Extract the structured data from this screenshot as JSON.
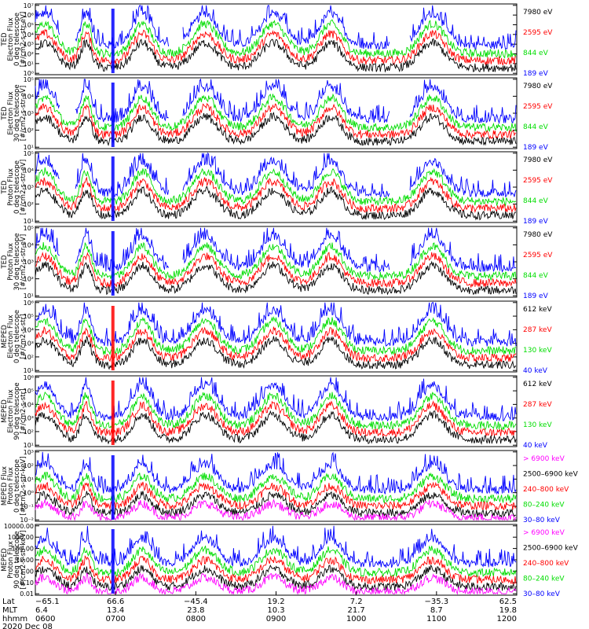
{
  "chart_data": {
    "type": "line",
    "panels": [
      {
        "id": "ted-e-0",
        "ylabel": [
          "TED",
          "Electron Flux",
          "0 deg telescope",
          "[#/cm2-s-str-eV]"
        ],
        "yticks": [
          "10⁰",
          "10¹",
          "10²",
          "10³",
          "10⁴",
          "10⁵",
          "10⁶",
          "10⁷"
        ],
        "ylim": [
          0,
          7
        ],
        "legend": [
          {
            "label": "7980 eV",
            "color": "#000000"
          },
          {
            "label": "2595 eV",
            "color": "#ff0000"
          },
          {
            "label": "844 eV",
            "color": "#00dd00"
          },
          {
            "label": "189 eV",
            "color": "#0000ff"
          }
        ]
      },
      {
        "id": "ted-e-30",
        "ylabel": [
          "TED",
          "Electron Flux",
          "30 deg telescope",
          "[#/cm2-s-str-eV]"
        ],
        "yticks": [
          "10¹",
          "10²",
          "10³",
          "10⁴",
          "10⁵"
        ],
        "ylim": [
          0.5,
          5.6
        ],
        "legend": [
          {
            "label": "7980 eV",
            "color": "#000000"
          },
          {
            "label": "2595 eV",
            "color": "#ff0000"
          },
          {
            "label": "844 eV",
            "color": "#00dd00"
          },
          {
            "label": "189 eV",
            "color": "#0000ff"
          }
        ]
      },
      {
        "id": "ted-p-0",
        "ylabel": [
          "TED",
          "Proton Flux",
          "0 deg telescope",
          "[#/cm2-s-str-eV]"
        ],
        "yticks": [
          "10¹",
          "10²",
          "10³",
          "10⁴",
          "10⁵"
        ],
        "ylim": [
          0.5,
          5.6
        ],
        "legend": [
          {
            "label": "7980 eV",
            "color": "#000000"
          },
          {
            "label": "2595 eV",
            "color": "#ff0000"
          },
          {
            "label": "844 eV",
            "color": "#00dd00"
          },
          {
            "label": "189 eV",
            "color": "#0000ff"
          }
        ]
      },
      {
        "id": "ted-p-30",
        "ylabel": [
          "TED",
          "Proton Flux",
          "30 deg telescope",
          "[#/cm2-s-str-eV]"
        ],
        "yticks": [
          "10¹",
          "10²",
          "10³",
          "10⁴",
          "10⁵"
        ],
        "ylim": [
          0.5,
          5.6
        ],
        "legend": [
          {
            "label": "7980 eV",
            "color": "#000000"
          },
          {
            "label": "2595 eV",
            "color": "#ff0000"
          },
          {
            "label": "844 eV",
            "color": "#00dd00"
          },
          {
            "label": "189 eV",
            "color": "#0000ff"
          }
        ]
      },
      {
        "id": "meped-e-0",
        "ylabel": [
          "MEPED",
          "Electron Flux",
          "0 deg telescope",
          "[#/cm2-s-str]"
        ],
        "yticks": [
          "10¹",
          "10²",
          "10³",
          "10⁴",
          "10⁵",
          "10⁶"
        ],
        "ylim": [
          1,
          6.4
        ],
        "legend": [
          {
            "label": "612 keV",
            "color": "#000000"
          },
          {
            "label": "287 keV",
            "color": "#ff0000"
          },
          {
            "label": "130 keV",
            "color": "#00dd00"
          },
          {
            "label": "40 keV",
            "color": "#0000ff"
          }
        ]
      },
      {
        "id": "meped-e-90",
        "ylabel": [
          "MEPED",
          "Electron Flux",
          "90 deg telescope",
          "[#/cm2-s-str]"
        ],
        "yticks": [
          "10¹",
          "10²",
          "10³",
          "10⁴",
          "10⁵",
          "10⁶"
        ],
        "ylim": [
          1,
          6.4
        ],
        "legend": [
          {
            "label": "612 keV",
            "color": "#000000"
          },
          {
            "label": "287 keV",
            "color": "#ff0000"
          },
          {
            "label": "130 keV",
            "color": "#00dd00"
          },
          {
            "label": "40 keV",
            "color": "#0000ff"
          }
        ]
      },
      {
        "id": "meped-p-0",
        "ylabel": [
          "MEPED Flux",
          "Proton Flux",
          "0 deg telescope",
          "[#/cm2-s-str-keV]"
        ],
        "yticks": [
          "10⁻²",
          "10⁻¹",
          "10⁰",
          "10¹",
          "10²",
          "10³"
        ],
        "ylim": [
          -2.3,
          3.6
        ],
        "legend": [
          {
            "label": "> 6900 keV",
            "color": "#ff00ff"
          },
          {
            "label": "2500–6900 keV",
            "color": "#000000"
          },
          {
            "label": "240–800 keV",
            "color": "#ff0000"
          },
          {
            "label": "80–240 keV",
            "color": "#00dd00"
          },
          {
            "label": "30–80 keV",
            "color": "#0000ff"
          }
        ]
      },
      {
        "id": "meped-p-90",
        "ylabel": [
          "MEPED",
          "Proton Flux",
          "90 deg telescope",
          "[#/cm2-s-str-keV]"
        ],
        "yticks": [
          "0.01",
          "0.10",
          "1.00",
          "10.00",
          "100.00",
          "1000.00",
          "10000.00"
        ],
        "ylim": [
          -2.3,
          4.2
        ],
        "legend": [
          {
            "label": "> 6900 keV",
            "color": "#ff00ff"
          },
          {
            "label": "2500–6900 keV",
            "color": "#000000"
          },
          {
            "label": "240–800 keV",
            "color": "#ff0000"
          },
          {
            "label": "80–240 keV",
            "color": "#00dd00"
          },
          {
            "label": "30–80 keV",
            "color": "#0000ff"
          }
        ]
      }
    ],
    "x_axis": {
      "row_labels": [
        "Lat",
        "MLT",
        "hhmm",
        "2020 Dec 08"
      ],
      "ticks": [
        {
          "lat": "−65.1",
          "mlt": "6.4",
          "hhmm": "0600"
        },
        {
          "lat": "66.6",
          "mlt": "13.4",
          "hhmm": "0700"
        },
        {
          "lat": "−45.4",
          "mlt": "23.8",
          "hhmm": "0800"
        },
        {
          "lat": "19.2",
          "mlt": "10.3",
          "hhmm": "0900"
        },
        {
          "lat": "7.2",
          "mlt": "21.7",
          "hhmm": "1000"
        },
        {
          "lat": "−35.3",
          "mlt": "8.7",
          "hhmm": "1100"
        },
        {
          "lat": "62.5",
          "mlt": "19.8",
          "hhmm": "1200"
        }
      ]
    },
    "time_range_min": [
      0,
      360
    ],
    "events_min": [
      {
        "t": 7,
        "w": 8
      },
      {
        "t": 38,
        "w": 4
      },
      {
        "t": 80,
        "w": 7
      },
      {
        "t": 127,
        "w": 9
      },
      {
        "t": 178,
        "w": 9
      },
      {
        "t": 221,
        "w": 8
      },
      {
        "t": 297,
        "w": 9
      }
    ],
    "spike_min": 58
  }
}
